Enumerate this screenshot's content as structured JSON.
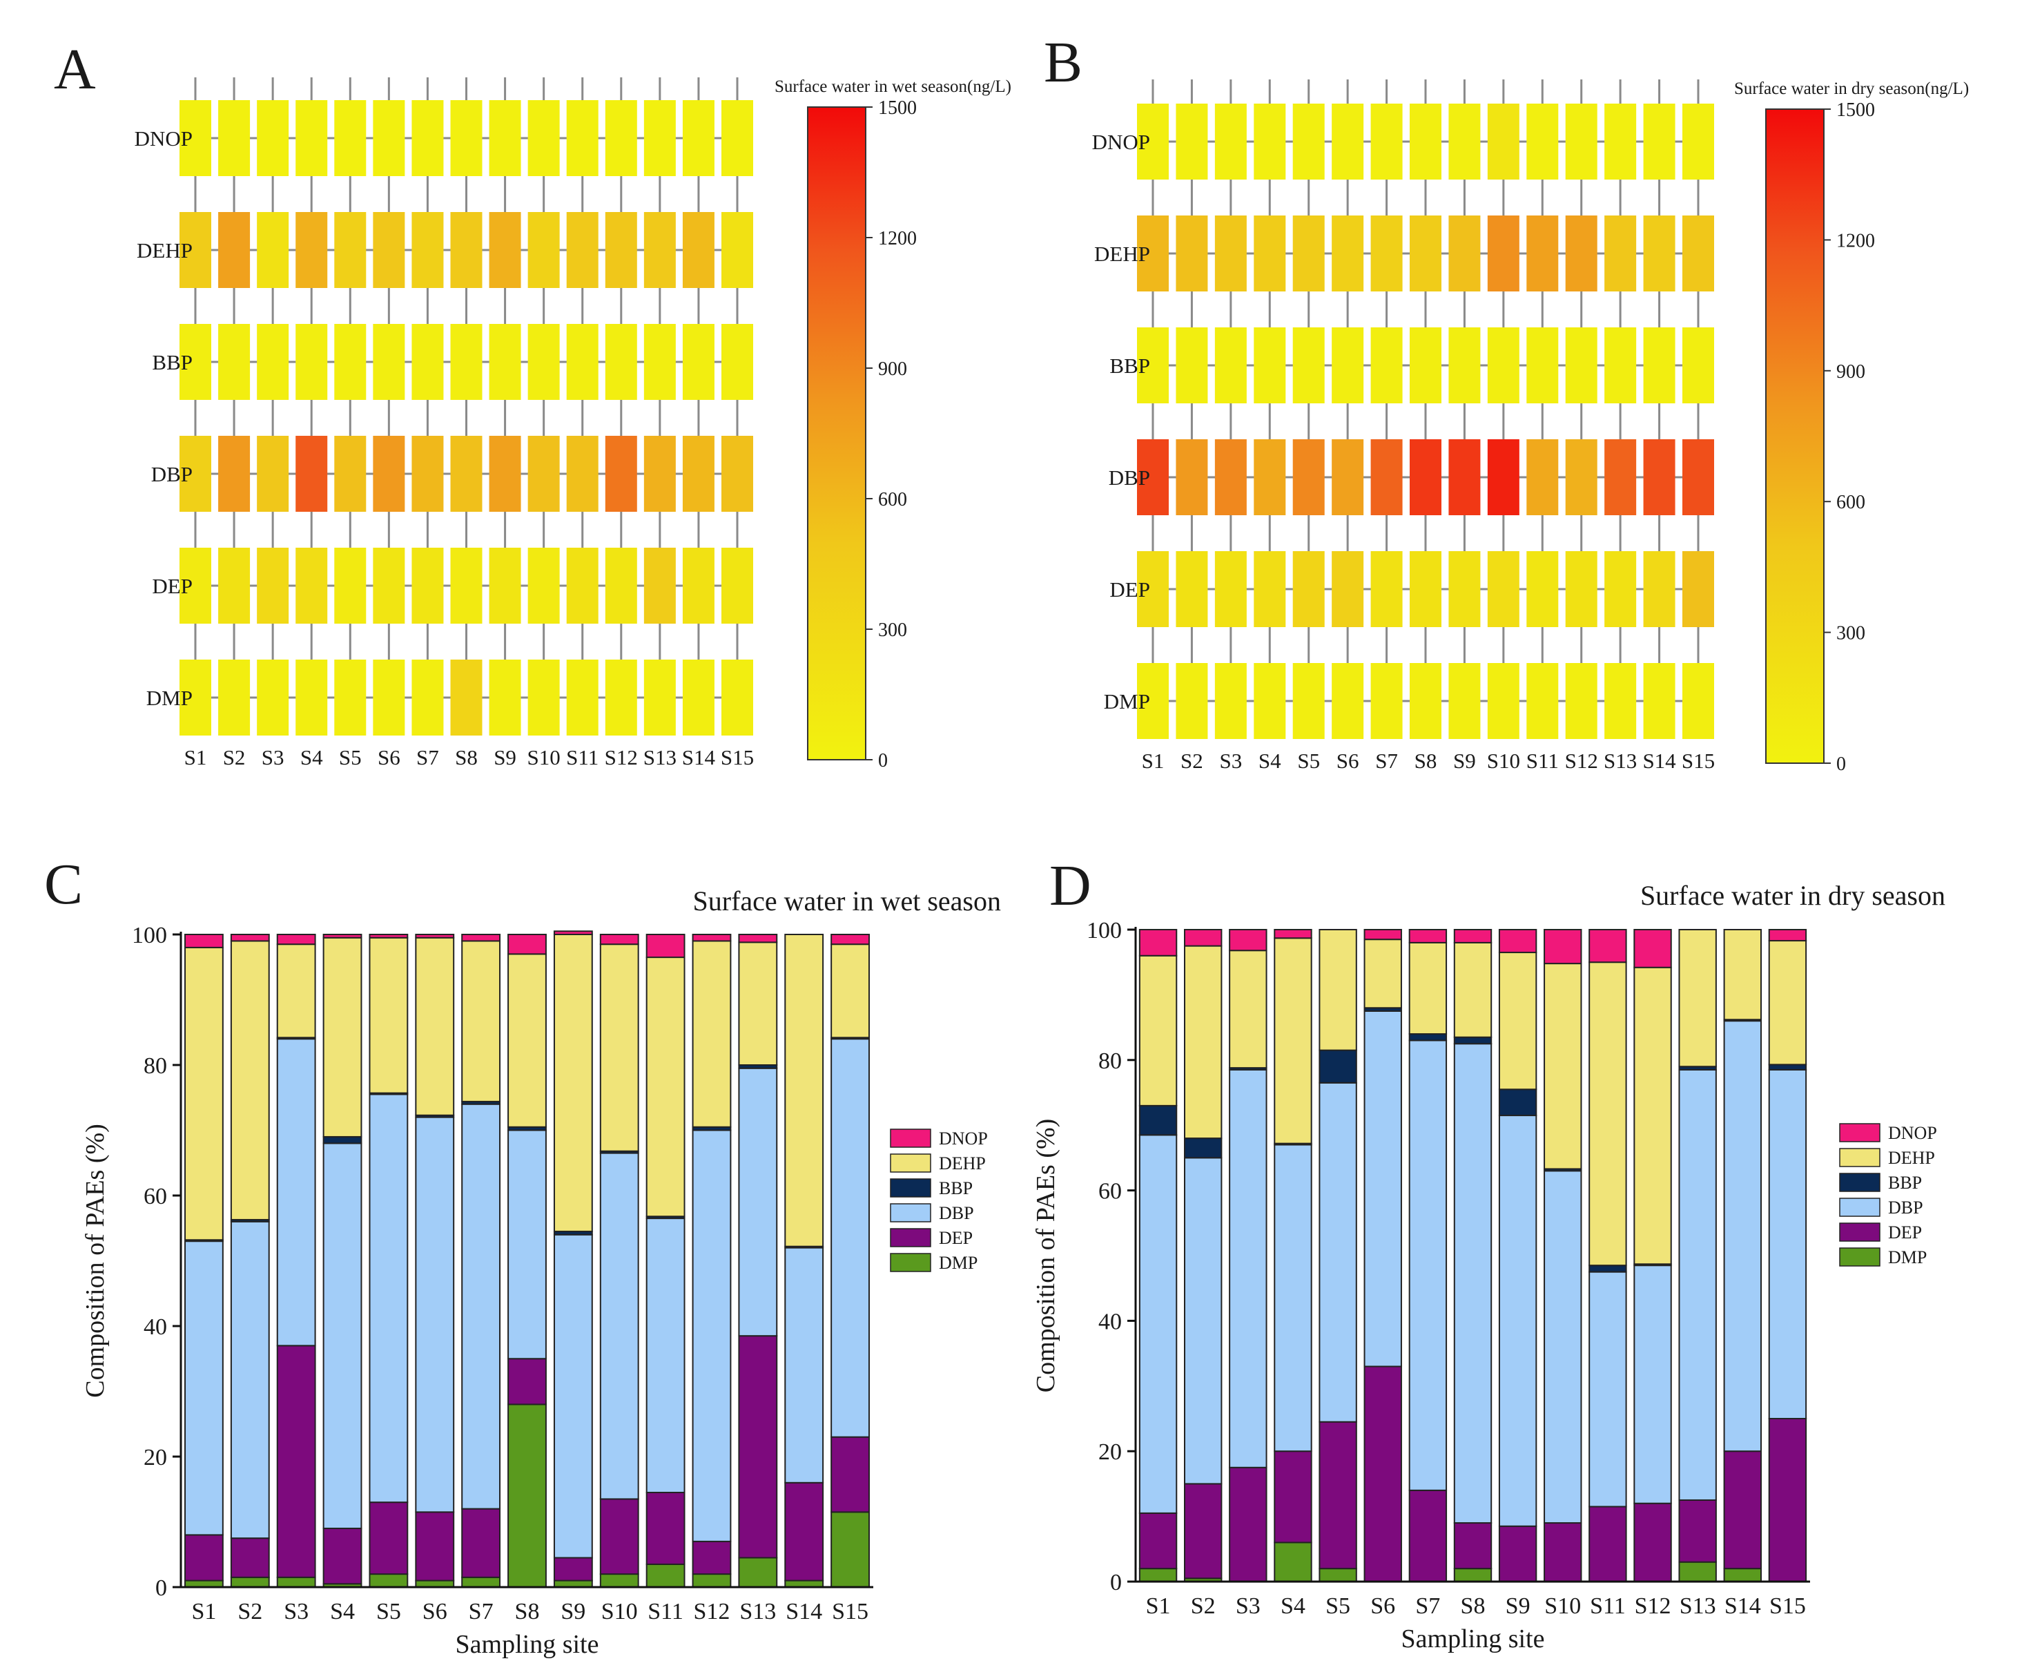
{
  "chart_data": [
    {
      "type": "heatmap",
      "panel": "A",
      "title": "Surface water in wet season(ng/L)",
      "x_categories": [
        "S1",
        "S2",
        "S3",
        "S4",
        "S5",
        "S6",
        "S7",
        "S8",
        "S9",
        "S10",
        "S11",
        "S12",
        "S13",
        "S14",
        "S15"
      ],
      "y_categories": [
        "DNOP",
        "DEHP",
        "BBP",
        "DBP",
        "DEP",
        "DMP"
      ],
      "colorbar_ticks": [
        "1500",
        "1200",
        "900",
        "600",
        "300",
        "0"
      ],
      "value_range": [
        0,
        1500
      ],
      "values": [
        [
          20,
          20,
          20,
          20,
          20,
          20,
          20,
          20,
          20,
          20,
          20,
          20,
          20,
          20,
          20
        ],
        [
          450,
          750,
          200,
          650,
          400,
          500,
          400,
          480,
          650,
          380,
          480,
          500,
          480,
          580,
          200
        ],
        [
          50,
          50,
          50,
          50,
          50,
          50,
          50,
          50,
          50,
          50,
          50,
          50,
          50,
          50,
          50
        ],
        [
          400,
          800,
          500,
          1150,
          550,
          800,
          600,
          550,
          750,
          550,
          550,
          1000,
          650,
          600,
          550
        ],
        [
          100,
          200,
          300,
          250,
          100,
          150,
          150,
          100,
          150,
          100,
          200,
          150,
          450,
          200,
          150
        ],
        [
          50,
          50,
          50,
          50,
          50,
          50,
          50,
          350,
          50,
          50,
          50,
          50,
          50,
          50,
          50
        ]
      ]
    },
    {
      "type": "heatmap",
      "panel": "B",
      "title": "Surface water in dry season(ng/L)",
      "x_categories": [
        "S1",
        "S2",
        "S3",
        "S4",
        "S5",
        "S6",
        "S7",
        "S8",
        "S9",
        "S10",
        "S11",
        "S12",
        "S13",
        "S14",
        "S15"
      ],
      "y_categories": [
        "DNOP",
        "DEHP",
        "BBP",
        "DBP",
        "DEP",
        "DMP"
      ],
      "colorbar_ticks": [
        "1500",
        "1200",
        "900",
        "600",
        "300",
        "0"
      ],
      "value_range": [
        0,
        1500
      ],
      "values": [
        [
          30,
          30,
          30,
          30,
          30,
          30,
          30,
          30,
          30,
          150,
          30,
          30,
          30,
          30,
          30
        ],
        [
          600,
          550,
          500,
          450,
          450,
          400,
          400,
          450,
          550,
          850,
          750,
          750,
          500,
          450,
          500
        ],
        [
          50,
          50,
          50,
          50,
          50,
          50,
          50,
          50,
          50,
          50,
          50,
          50,
          50,
          50,
          50
        ],
        [
          1250,
          800,
          900,
          700,
          900,
          750,
          1100,
          1300,
          1300,
          1400,
          700,
          650,
          1100,
          1200,
          1200
        ],
        [
          250,
          200,
          200,
          250,
          350,
          400,
          200,
          200,
          200,
          250,
          150,
          200,
          200,
          300,
          550
        ],
        [
          50,
          50,
          50,
          50,
          50,
          50,
          50,
          50,
          50,
          50,
          50,
          50,
          50,
          50,
          50
        ]
      ]
    },
    {
      "type": "bar",
      "stacked": true,
      "panel": "C",
      "title": "Surface water in wet season",
      "xlabel": "Sampling site",
      "ylabel": "Composition of PAEs (%)",
      "ylim": [
        0,
        100
      ],
      "yticks": [
        "0",
        "20",
        "40",
        "60",
        "80",
        "100"
      ],
      "categories": [
        "S1",
        "S2",
        "S3",
        "S4",
        "S5",
        "S6",
        "S7",
        "S8",
        "S9",
        "S10",
        "S11",
        "S12",
        "S13",
        "S14",
        "S15"
      ],
      "series": [
        {
          "name": "DMP",
          "color": "#5a9a1e",
          "values": [
            1,
            1.5,
            1.5,
            0.5,
            2,
            1,
            1.5,
            28,
            1,
            2,
            3.5,
            2,
            4.5,
            1,
            11.5
          ]
        },
        {
          "name": "DEP",
          "color": "#7d0a7d",
          "values": [
            7,
            6,
            35.5,
            8.5,
            11,
            10.5,
            10.5,
            7,
            3.5,
            11.5,
            11,
            5,
            34,
            15,
            11.5
          ]
        },
        {
          "name": "DBP",
          "color": "#a2cdf8",
          "values": [
            45,
            48.5,
            47,
            59,
            62.5,
            60.5,
            62,
            35,
            49.5,
            53,
            42,
            63,
            41,
            36,
            61
          ]
        },
        {
          "name": "BBP",
          "color": "#0a2a55",
          "values": [
            0.2,
            0.3,
            0.2,
            1,
            0.2,
            0.3,
            0.4,
            0.5,
            0.5,
            0.3,
            0.3,
            0.5,
            0.5,
            0.2,
            0.2
          ]
        },
        {
          "name": "DEHP",
          "color": "#f0e479",
          "values": [
            44.8,
            42.7,
            14.3,
            30.5,
            23.8,
            27.2,
            24.6,
            26.5,
            45.5,
            31.7,
            39.7,
            28.5,
            18.8,
            47.8,
            14.3
          ]
        },
        {
          "name": "DNOP",
          "color": "#f0187a",
          "values": [
            2,
            1,
            1.5,
            0.5,
            0.5,
            0.5,
            1,
            3,
            0.5,
            1.5,
            3.5,
            1,
            1.2,
            0,
            1.5
          ]
        }
      ],
      "legend": [
        "DNOP",
        "DEHP",
        "BBP",
        "DBP",
        "DEP",
        "DMP"
      ]
    },
    {
      "type": "bar",
      "stacked": true,
      "panel": "D",
      "title": "Surface water in dry season",
      "xlabel": "Sampling site",
      "ylabel": "Composition of PAEs (%)",
      "ylim": [
        0,
        100
      ],
      "yticks": [
        "0",
        "20",
        "40",
        "60",
        "80",
        "100"
      ],
      "categories": [
        "S1",
        "S2",
        "S3",
        "S4",
        "S5",
        "S6",
        "S7",
        "S8",
        "S9",
        "S10",
        "S11",
        "S12",
        "S13",
        "S14",
        "S15"
      ],
      "series": [
        {
          "name": "DMP",
          "color": "#5a9a1e",
          "values": [
            2,
            0.5,
            0,
            6,
            2,
            0,
            0,
            2,
            0,
            0,
            0,
            0,
            3,
            2,
            0
          ]
        },
        {
          "name": "DEP",
          "color": "#7d0a7d",
          "values": [
            8.5,
            14.5,
            17.5,
            14,
            22.5,
            33,
            14,
            7,
            8.5,
            9,
            11.5,
            12,
            9.5,
            18,
            25
          ]
        },
        {
          "name": "DBP",
          "color": "#a2cdf8",
          "values": [
            58,
            50,
            61,
            47,
            52,
            54.5,
            69,
            73.5,
            63,
            54,
            36,
            36.5,
            66,
            66,
            53.5
          ]
        },
        {
          "name": "BBP",
          "color": "#0a2a55",
          "values": [
            4.5,
            3,
            0.3,
            0.2,
            5,
            0.5,
            1,
            1,
            4,
            0.3,
            1,
            0.2,
            0.5,
            0.2,
            0.8
          ]
        },
        {
          "name": "DEHP",
          "color": "#f0e479",
          "values": [
            23,
            29.5,
            18,
            31.5,
            18.5,
            10.5,
            14,
            14.5,
            21,
            31.5,
            46.5,
            45.5,
            21,
            13.8,
            19
          ]
        },
        {
          "name": "DNOP",
          "color": "#f0187a",
          "values": [
            4,
            2.5,
            3.2,
            1.3,
            0,
            1.5,
            2,
            2,
            3.5,
            5.2,
            5,
            5.8,
            0,
            0,
            1.7
          ]
        }
      ],
      "legend": [
        "DNOP",
        "DEHP",
        "BBP",
        "DBP",
        "DEP",
        "DMP"
      ]
    }
  ]
}
